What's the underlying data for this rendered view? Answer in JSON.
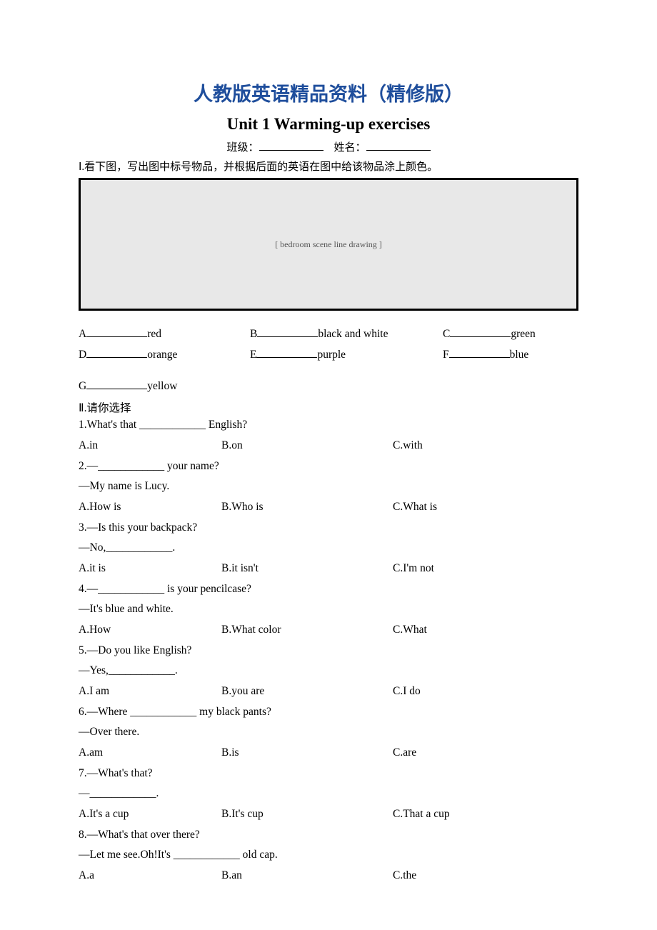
{
  "title_main": "人教版英语精品资料（精修版）",
  "title_sub": "Unit 1 Warming-up exercises",
  "name_line": {
    "class_label": "班级：",
    "name_label": "姓名："
  },
  "section1": {
    "heading": "Ⅰ.看下图，写出图中标号物品，并根据后面的英语在图中给该物品涂上颜色。",
    "image_alt": "[ bedroom scene line drawing ]",
    "items": [
      {
        "letter": "A",
        "color": "red"
      },
      {
        "letter": "B",
        "color": "black and white"
      },
      {
        "letter": "C",
        "color": "green"
      },
      {
        "letter": "D",
        "color": "orange"
      },
      {
        "letter": "E",
        "color": "purple"
      },
      {
        "letter": "F",
        "color": "blue"
      },
      {
        "letter": "G",
        "color": "yellow"
      }
    ]
  },
  "section2": {
    "heading": "Ⅱ.请你选择",
    "questions": [
      {
        "stem": "1.What's that ____________ English?",
        "opts": {
          "a": "A.in",
          "b": "B.on",
          "c": "C.with"
        }
      },
      {
        "stem": "2.—____________ your name?",
        "cont": "—My name is Lucy.",
        "opts": {
          "a": "A.How is",
          "b": "B.Who is",
          "c": "C.What is"
        }
      },
      {
        "stem": "3.—Is this your backpack?",
        "cont": "—No,____________.",
        "opts": {
          "a": "A.it is",
          "b": "B.it isn't",
          "c": "C.I'm not"
        }
      },
      {
        "stem": "4.—____________ is your pencilcase?",
        "cont": "—It's blue and white.",
        "opts": {
          "a": "A.How",
          "b": "B.What color",
          "c": "C.What"
        }
      },
      {
        "stem": "5.—Do you like English?",
        "cont": "—Yes,____________.",
        "opts": {
          "a": "A.I am",
          "b": "B.you are",
          "c": "C.I do"
        }
      },
      {
        "stem": "6.—Where ____________ my black pants?",
        "cont": "—Over there.",
        "opts": {
          "a": "A.am",
          "b": "B.is",
          "c": "C.are"
        }
      },
      {
        "stem": "7.—What's that?",
        "cont": "—____________.",
        "opts": {
          "a": "A.It's a cup",
          "b": "B.It's cup",
          "c": "C.That a cup"
        }
      },
      {
        "stem": "8.—What's that over there?",
        "cont": "—Let me see.Oh!It's ____________ old cap.",
        "opts": {
          "a": "A.a",
          "b": "B.an",
          "c": "C.the"
        }
      }
    ]
  },
  "colors": {
    "title_blue": "#1f4e9c",
    "text": "#000000",
    "bg": "#ffffff"
  }
}
